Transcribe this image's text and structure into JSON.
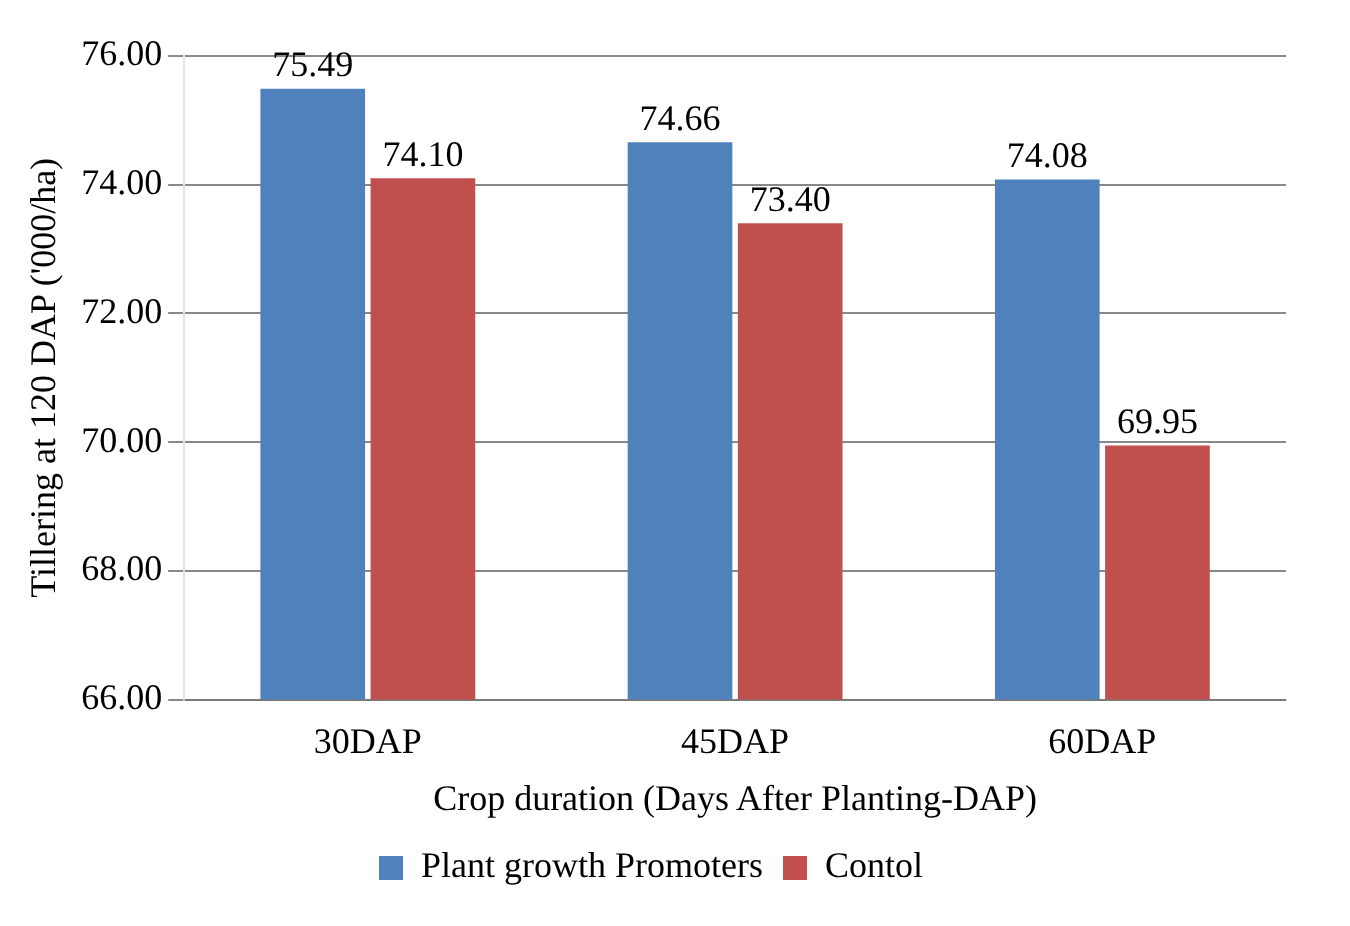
{
  "chart_data": {
    "type": "bar",
    "xlabel": "Crop duration (Days After Planting-DAP)",
    "ylabel": "Tillering at 120 DAP ('000/ha)",
    "categories": [
      "30DAP",
      "45DAP",
      "60DAP"
    ],
    "series": [
      {
        "name": "Plant growth Promoters",
        "color": "#4f81bd",
        "values": [
          75.49,
          74.66,
          74.08
        ],
        "value_labels": [
          "75.49",
          "74.66",
          "74.08"
        ]
      },
      {
        "name": "Contol",
        "color": "#c0504d",
        "values": [
          74.1,
          73.4,
          69.95
        ],
        "value_labels": [
          "74.10",
          "73.40",
          "69.95"
        ]
      }
    ],
    "ylim": [
      66,
      76
    ],
    "yticks": [
      {
        "value": 66,
        "label": "66.00"
      },
      {
        "value": 68,
        "label": "68.00"
      },
      {
        "value": 70,
        "label": "70.00"
      },
      {
        "value": 72,
        "label": "72.00"
      },
      {
        "value": 74,
        "label": "74.00"
      },
      {
        "value": 76,
        "label": "76.00"
      }
    ],
    "grid": "y",
    "legend": "bottom"
  }
}
